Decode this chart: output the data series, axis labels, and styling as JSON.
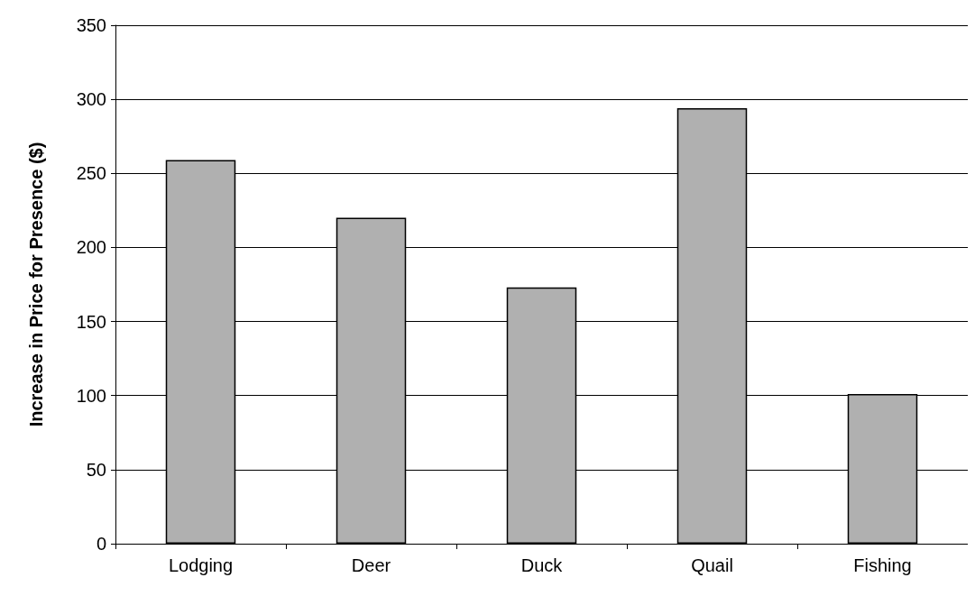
{
  "chart_data": {
    "type": "bar",
    "ylabel": "Increase in Price for Presence ($)",
    "categories": [
      "Lodging",
      "Deer",
      "Duck",
      "Quail",
      "Fishing"
    ],
    "values": [
      259,
      220,
      173,
      294,
      101
    ],
    "color": "#b0b0b0",
    "ylim": [
      0,
      350
    ],
    "yticks": [
      0,
      50,
      100,
      150,
      200,
      250,
      300,
      350
    ],
    "grid": "y"
  }
}
